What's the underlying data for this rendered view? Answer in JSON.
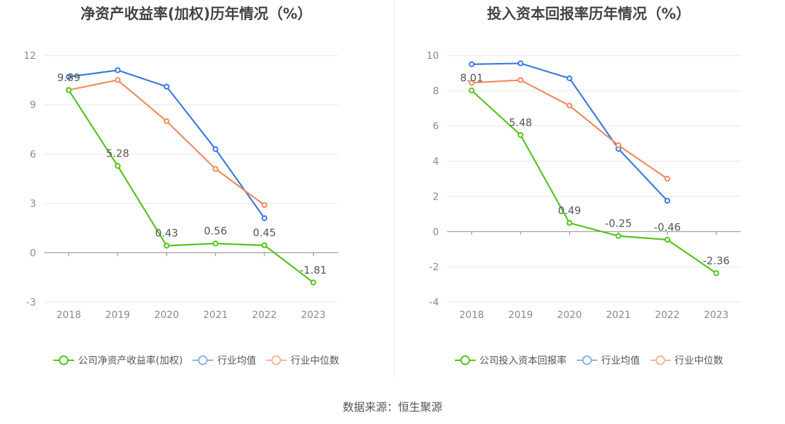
{
  "chart_data": [
    {
      "type": "line",
      "title": "净资产收益率(加权)历年情况（%）",
      "categories": [
        "2018",
        "2019",
        "2020",
        "2021",
        "2022",
        "2023"
      ],
      "yticks": [
        12,
        9,
        6,
        3,
        0,
        -3
      ],
      "ylim": [
        -3,
        12
      ],
      "grid": true,
      "legend_position": "bottom",
      "series": [
        {
          "name": "公司净资产收益率(加权)",
          "color": "#52c41a",
          "values": [
            9.89,
            5.28,
            0.43,
            0.56,
            0.45,
            -1.81
          ],
          "labels": [
            "9.89",
            "5.28",
            "0.43",
            "0.56",
            "0.45",
            "-1.81"
          ]
        },
        {
          "name": "行业均值",
          "color": "#3a78e0",
          "values": [
            10.7,
            11.1,
            10.1,
            6.3,
            2.1,
            null
          ],
          "labels": null
        },
        {
          "name": "行业中位数",
          "color": "#f08a5d",
          "values": [
            9.9,
            10.5,
            8.0,
            5.1,
            2.9,
            null
          ],
          "labels": null
        }
      ]
    },
    {
      "type": "line",
      "title": "投入资本回报率历年情况（%）",
      "categories": [
        "2018",
        "2019",
        "2020",
        "2021",
        "2022",
        "2023"
      ],
      "yticks": [
        10,
        8,
        6,
        4,
        2,
        0,
        -2,
        -4
      ],
      "ylim": [
        -4,
        10
      ],
      "grid": true,
      "legend_position": "bottom",
      "series": [
        {
          "name": "公司投入资本回报率",
          "color": "#52c41a",
          "values": [
            8.01,
            5.48,
            0.49,
            -0.25,
            -0.46,
            -2.36
          ],
          "labels": [
            "8.01",
            "5.48",
            "0.49",
            "-0.25",
            "-0.46",
            "-2.36"
          ]
        },
        {
          "name": "行业均值",
          "color": "#3a78e0",
          "values": [
            9.5,
            9.55,
            8.7,
            4.7,
            1.75,
            null
          ],
          "labels": null
        },
        {
          "name": "行业中位数",
          "color": "#f08a5d",
          "values": [
            8.45,
            8.6,
            7.15,
            4.9,
            3.0,
            null
          ],
          "labels": null
        }
      ]
    }
  ],
  "legend_colors": {
    "company": "#52c41a",
    "industry_avg": "#8fb0ec",
    "industry_median": "#f7b69a"
  },
  "source_text": "数据来源：恒生聚源"
}
